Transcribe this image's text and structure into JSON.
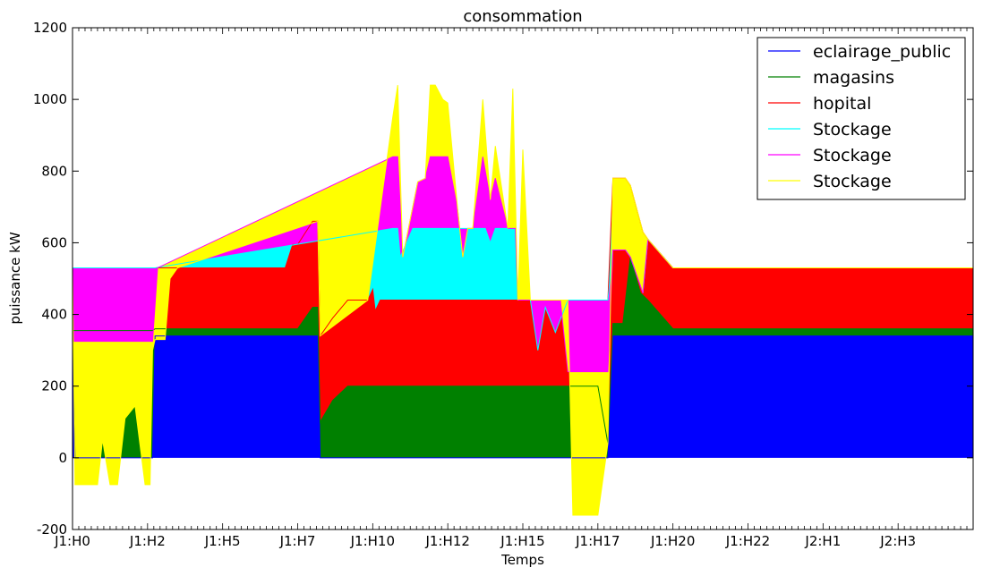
{
  "chart_data": {
    "type": "area",
    "stacked": true,
    "title": "consommation",
    "xlabel": "Temps",
    "ylabel": "puissance kW",
    "ylim": [
      -200,
      1200
    ],
    "yticks": [
      -200,
      0,
      200,
      400,
      600,
      800,
      1000,
      1200
    ],
    "xlim": [
      0,
      36
    ],
    "xticks": [
      {
        "x": 0,
        "label": "J1:H0"
      },
      {
        "x": 3,
        "label": "J1:H2"
      },
      {
        "x": 6,
        "label": "J1:H5"
      },
      {
        "x": 9,
        "label": "J1:H7"
      },
      {
        "x": 12,
        "label": "J1:H10"
      },
      {
        "x": 15,
        "label": "J1:H12"
      },
      {
        "x": 18,
        "label": "J1:H15"
      },
      {
        "x": 21,
        "label": "J1:H17"
      },
      {
        "x": 24,
        "label": "J1:H20"
      },
      {
        "x": 27,
        "label": "J1:H22"
      },
      {
        "x": 30,
        "label": "J2:H1"
      },
      {
        "x": 33,
        "label": "J2:H3"
      }
    ],
    "grid": false,
    "legend_position": "top-right",
    "series": [
      {
        "name": "eclairage_public",
        "color": "#0000ff",
        "points": [
          [
            0,
            340
          ],
          [
            0.1,
            0
          ],
          [
            3.2,
            0
          ],
          [
            3.3,
            340
          ],
          [
            9.8,
            340
          ],
          [
            9.9,
            0
          ],
          [
            21.4,
            0
          ],
          [
            21.6,
            340
          ],
          [
            36,
            340
          ]
        ]
      },
      {
        "name": "magasins",
        "color": "#008000",
        "points": [
          [
            0,
            355
          ],
          [
            3.2,
            355
          ],
          [
            3.3,
            360
          ],
          [
            9,
            360
          ],
          [
            9.6,
            420
          ],
          [
            9.8,
            420
          ],
          [
            9.9,
            100
          ],
          [
            10.4,
            160
          ],
          [
            11,
            200
          ],
          [
            19.5,
            200
          ],
          [
            20.5,
            200
          ],
          [
            21,
            200
          ],
          [
            21.4,
            40
          ],
          [
            21.6,
            375
          ],
          [
            22,
            375
          ],
          [
            22.3,
            560
          ],
          [
            22.7,
            460
          ],
          [
            23,
            440
          ],
          [
            24,
            360
          ],
          [
            36,
            360
          ]
        ]
      },
      {
        "name": "hopital",
        "color": "#ff0000",
        "points": [
          [
            0,
            530
          ],
          [
            3.2,
            530
          ],
          [
            3.4,
            530
          ],
          [
            8.5,
            530
          ],
          [
            8.8,
            595
          ],
          [
            9,
            595
          ],
          [
            9.6,
            660
          ],
          [
            9.8,
            660
          ],
          [
            9.9,
            340
          ],
          [
            10.4,
            390
          ],
          [
            11,
            440
          ],
          [
            11.8,
            440
          ],
          [
            12,
            470
          ],
          [
            12.1,
            410
          ],
          [
            12.3,
            440
          ],
          [
            21,
            440
          ],
          [
            21.4,
            440
          ],
          [
            21.6,
            780
          ],
          [
            22.1,
            780
          ],
          [
            22.3,
            760
          ],
          [
            22.8,
            630
          ],
          [
            23,
            610
          ],
          [
            24,
            530
          ],
          [
            36,
            530
          ]
        ]
      },
      {
        "name": "Stockage",
        "color": "#00ffff",
        "points": [
          [
            0,
            530
          ],
          [
            3.2,
            530
          ],
          [
            3.3,
            530
          ],
          [
            12.8,
            640
          ],
          [
            13,
            640
          ],
          [
            13.1,
            560
          ],
          [
            13.6,
            640
          ],
          [
            16.5,
            640
          ],
          [
            16.7,
            600
          ],
          [
            16.9,
            640
          ],
          [
            17.7,
            640
          ],
          [
            17.8,
            440
          ],
          [
            18.3,
            440
          ],
          [
            18.6,
            300
          ],
          [
            18.9,
            420
          ],
          [
            19.3,
            350
          ],
          [
            19.8,
            440
          ],
          [
            21.4,
            440
          ],
          [
            21.6,
            580
          ],
          [
            22.1,
            580
          ],
          [
            22.3,
            560
          ],
          [
            22.8,
            460
          ],
          [
            23,
            610
          ],
          [
            24,
            530
          ],
          [
            36,
            530
          ]
        ]
      },
      {
        "name": "Stockage",
        "color": "#ff00ff",
        "points": [
          [
            0,
            325
          ],
          [
            0.3,
            325
          ],
          [
            3.0,
            325
          ],
          [
            3.2,
            325
          ],
          [
            3.4,
            530
          ],
          [
            12.8,
            840
          ],
          [
            13.0,
            840
          ],
          [
            13.2,
            560
          ],
          [
            13.8,
            770
          ],
          [
            14.1,
            780
          ],
          [
            14.3,
            840
          ],
          [
            15,
            840
          ],
          [
            15.4,
            690
          ],
          [
            15.6,
            560
          ],
          [
            15.8,
            640
          ],
          [
            16,
            640
          ],
          [
            16.4,
            840
          ],
          [
            16.7,
            720
          ],
          [
            16.9,
            780
          ],
          [
            17.4,
            640
          ],
          [
            17.7,
            640
          ],
          [
            17.8,
            440
          ],
          [
            18.5,
            440
          ],
          [
            19.5,
            440
          ],
          [
            19.8,
            240
          ],
          [
            21,
            240
          ],
          [
            21.4,
            240
          ],
          [
            21.6,
            580
          ],
          [
            22.1,
            580
          ],
          [
            22.3,
            560
          ],
          [
            22.8,
            460
          ],
          [
            23,
            610
          ],
          [
            24,
            530
          ],
          [
            36,
            530
          ]
        ]
      },
      {
        "name": "Stockage",
        "color": "#ffff00",
        "points": [
          [
            0,
            530
          ],
          [
            0.1,
            -75
          ],
          [
            1,
            -75
          ],
          [
            1.2,
            50
          ],
          [
            1.5,
            -75
          ],
          [
            1.8,
            -75
          ],
          [
            2.1,
            110
          ],
          [
            2.5,
            145
          ],
          [
            2.9,
            -75
          ],
          [
            3.1,
            -75
          ],
          [
            3.2,
            300
          ],
          [
            3.3,
            330
          ],
          [
            3.7,
            330
          ],
          [
            3.9,
            500
          ],
          [
            4.2,
            530
          ],
          [
            9.8,
            660
          ],
          [
            9.9,
            340
          ],
          [
            11.8,
            440
          ],
          [
            12.8,
            950
          ],
          [
            13,
            1040
          ],
          [
            13.2,
            560
          ],
          [
            13.8,
            770
          ],
          [
            14.1,
            780
          ],
          [
            14.3,
            1040
          ],
          [
            14.5,
            1040
          ],
          [
            14.8,
            1000
          ],
          [
            15,
            990
          ],
          [
            15.4,
            690
          ],
          [
            15.6,
            560
          ],
          [
            15.8,
            640
          ],
          [
            16,
            640
          ],
          [
            16.4,
            1000
          ],
          [
            16.7,
            720
          ],
          [
            16.9,
            870
          ],
          [
            17.4,
            640
          ],
          [
            17.6,
            1030
          ],
          [
            17.8,
            440
          ],
          [
            18.0,
            860
          ],
          [
            18.3,
            440
          ],
          [
            19.8,
            440
          ],
          [
            20,
            -160
          ],
          [
            21,
            -160
          ],
          [
            21.4,
            40
          ],
          [
            21.6,
            780
          ],
          [
            22.1,
            780
          ],
          [
            22.3,
            760
          ],
          [
            22.8,
            630
          ],
          [
            23,
            610
          ],
          [
            24,
            530
          ],
          [
            36,
            530
          ]
        ]
      }
    ]
  }
}
